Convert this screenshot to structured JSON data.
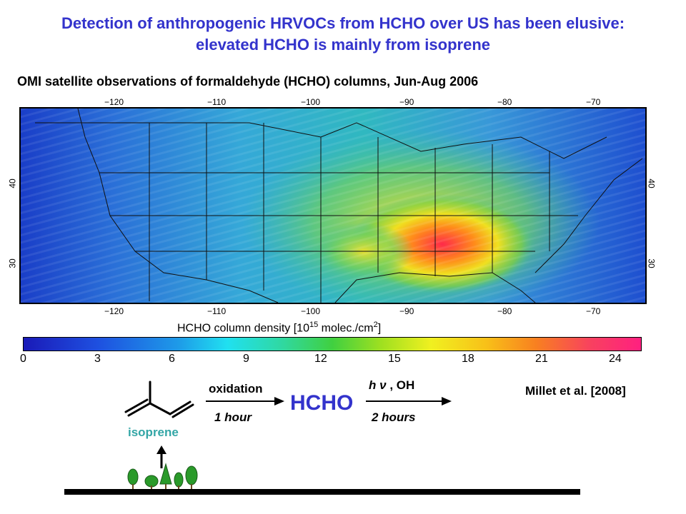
{
  "slide": {
    "title_line1": "Detection of anthropogenic HRVOCs from HCHO over US has been elusive:",
    "title_line2": "elevated HCHO is mainly from isoprene",
    "map_caption": "OMI satellite observations of formaldehyde (HCHO) columns, Jun-Aug 2006"
  },
  "map": {
    "lon_ticks": [
      "−120",
      "−110",
      "−100",
      "−90",
      "−80",
      "−70"
    ],
    "lat_ticks": [
      "40",
      "30"
    ]
  },
  "colorbar": {
    "title_prefix": "HCHO column density [10",
    "title_exp": "15",
    "title_suffix": " molec./cm",
    "title_sq": "2",
    "title_end": "]",
    "ticks": [
      "0",
      "3",
      "6",
      "9",
      "12",
      "15",
      "18",
      "21",
      "24"
    ]
  },
  "reaction": {
    "step1_top": "oxidation",
    "step1_bottom": "1 hour",
    "product": "HCHO",
    "step2_top_h": "h",
    "step2_top_nu": "ν",
    "step2_top_rest": " , OH",
    "step2_bottom": "2 hours",
    "reactant": "isoprene"
  },
  "reference": "Millet et al. [2008]",
  "colors": {
    "title": "#3333cc",
    "isoprene": "#33a6a6",
    "tree": "#2a9a2a"
  }
}
